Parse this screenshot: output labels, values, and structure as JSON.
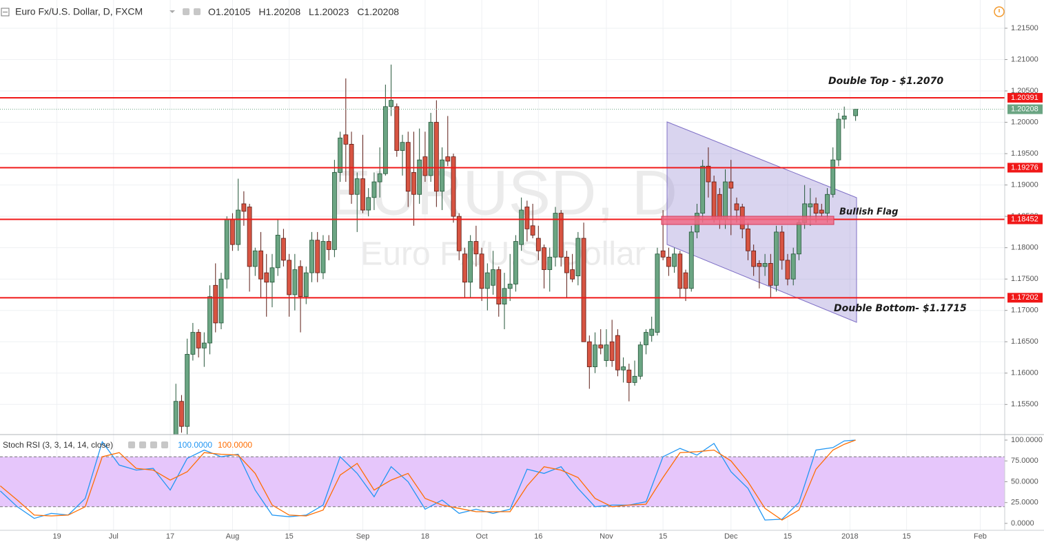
{
  "chart_data": [
    {
      "type": "candlestick",
      "title": "Euro Fx/U.S. Dollar, D, FXCM",
      "watermark": [
        "EURUSD, D",
        "Euro Fx/U.S. Dollar"
      ],
      "ohlc_labels": [
        "O",
        "H",
        "L",
        "C"
      ],
      "annotations": [
        "Double Top - $1.2070",
        "Bullish  Flag",
        "Double Bottom- $1.1715"
      ],
      "up_color": "#6ba583",
      "down_color": "#d75442",
      "level_color": "#f01818",
      "last_color": "#6ba583",
      "grid": true,
      "ylim": [
        1.1502,
        1.2195
      ],
      "yticks": [
        {
          "value": 1.155,
          "label": "1.15500"
        },
        {
          "value": 1.16,
          "label": "1.16000"
        },
        {
          "value": 1.165,
          "label": "1.16500"
        },
        {
          "value": 1.17,
          "label": "1.17000"
        },
        {
          "value": 1.175,
          "label": "1.17500"
        },
        {
          "value": 1.18,
          "label": "1.18000"
        },
        {
          "value": 1.185,
          "label": "1.18500"
        },
        {
          "value": 1.19,
          "label": "1.19000"
        },
        {
          "value": 1.195,
          "label": "1.19500"
        },
        {
          "value": 1.2,
          "label": "1.20000"
        },
        {
          "value": 1.205,
          "label": "1.20500"
        },
        {
          "value": 1.21,
          "label": "1.21000"
        },
        {
          "value": 1.215,
          "label": "1.21500"
        }
      ],
      "xticks": [
        {
          "value": "2017-06-19",
          "label": "19"
        },
        {
          "value": "2017-07-03",
          "label": "Jul"
        },
        {
          "value": "2017-07-17",
          "label": "17"
        },
        {
          "value": "2017-08-01",
          "label": "Aug"
        },
        {
          "value": "2017-08-15",
          "label": "15"
        },
        {
          "value": "2017-09-01",
          "label": "Sep"
        },
        {
          "value": "2017-09-18",
          "label": "18"
        },
        {
          "value": "2017-10-02",
          "label": "Oct"
        },
        {
          "value": "2017-10-16",
          "label": "16"
        },
        {
          "value": "2017-11-01",
          "label": "Nov"
        },
        {
          "value": "2017-11-15",
          "label": "15"
        },
        {
          "value": "2017-12-01",
          "label": "Dec"
        },
        {
          "value": "2017-12-15",
          "label": "15"
        },
        {
          "value": "2018-01-01",
          "label": "2018"
        },
        {
          "value": "2018-01-15",
          "label": "15"
        },
        {
          "value": "2018-02-01",
          "label": "Feb"
        }
      ],
      "levels": [
        1.20391,
        1.19276,
        1.18452,
        1.17202
      ],
      "dates": [
        "2017-07-17",
        "2017-07-18",
        "2017-07-19",
        "2017-07-20",
        "2017-07-21",
        "2017-07-24",
        "2017-07-25",
        "2017-07-26",
        "2017-07-27",
        "2017-07-28",
        "2017-07-31",
        "2017-08-01",
        "2017-08-02",
        "2017-08-03",
        "2017-08-04",
        "2017-08-07",
        "2017-08-08",
        "2017-08-09",
        "2017-08-10",
        "2017-08-11",
        "2017-08-14",
        "2017-08-15",
        "2017-08-16",
        "2017-08-17",
        "2017-08-18",
        "2017-08-21",
        "2017-08-22",
        "2017-08-23",
        "2017-08-24",
        "2017-08-25",
        "2017-08-28",
        "2017-08-29",
        "2017-08-30",
        "2017-08-31",
        "2017-09-01",
        "2017-09-04",
        "2017-09-05",
        "2017-09-06",
        "2017-09-07",
        "2017-09-08",
        "2017-09-11",
        "2017-09-12",
        "2017-09-13",
        "2017-09-14",
        "2017-09-15",
        "2017-09-18",
        "2017-09-19",
        "2017-09-20",
        "2017-09-21",
        "2017-09-22",
        "2017-09-25",
        "2017-09-26",
        "2017-09-27",
        "2017-09-28",
        "2017-09-29",
        "2017-10-02",
        "2017-10-03",
        "2017-10-04",
        "2017-10-05",
        "2017-10-06",
        "2017-10-09",
        "2017-10-10",
        "2017-10-11",
        "2017-10-12",
        "2017-10-13",
        "2017-10-16",
        "2017-10-17",
        "2017-10-18",
        "2017-10-19",
        "2017-10-20",
        "2017-10-23",
        "2017-10-24",
        "2017-10-25",
        "2017-10-26",
        "2017-10-27",
        "2017-10-30",
        "2017-10-31",
        "2017-11-01",
        "2017-11-02",
        "2017-11-03",
        "2017-11-06",
        "2017-11-07",
        "2017-11-08",
        "2017-11-09",
        "2017-11-10",
        "2017-11-13",
        "2017-11-14",
        "2017-11-15",
        "2017-11-16",
        "2017-11-17",
        "2017-11-20",
        "2017-11-21",
        "2017-11-22",
        "2017-11-23",
        "2017-11-24",
        "2017-11-27",
        "2017-11-28",
        "2017-11-29",
        "2017-11-30",
        "2017-12-01",
        "2017-12-04",
        "2017-12-05",
        "2017-12-06",
        "2017-12-07",
        "2017-12-08",
        "2017-12-11",
        "2017-12-12",
        "2017-12-13",
        "2017-12-14",
        "2017-12-15",
        "2017-12-18",
        "2017-12-19",
        "2017-12-20",
        "2017-12-21",
        "2017-12-22",
        "2017-12-25",
        "2017-12-26",
        "2017-12-27",
        "2017-12-28",
        "2017-12-29",
        "2018-01-02"
      ],
      "open": [
        1.147,
        1.1475,
        1.1555,
        1.1515,
        1.163,
        1.1665,
        1.164,
        1.1648,
        1.174,
        1.168,
        1.175,
        1.1845,
        1.1805,
        1.187,
        1.1865,
        1.177,
        1.1795,
        1.176,
        1.1745,
        1.1768,
        1.1815,
        1.178,
        1.1725,
        1.177,
        1.1722,
        1.176,
        1.1812,
        1.176,
        1.181,
        1.1797,
        1.192,
        1.198,
        1.1965,
        1.1885,
        1.191,
        1.186,
        1.188,
        1.1905,
        1.1918,
        1.2025,
        1.2025,
        1.1955,
        1.1968,
        1.192,
        1.1885,
        1.1945,
        1.1915,
        1.2,
        1.189,
        1.1945,
        1.1945,
        1.185,
        1.179,
        1.1745,
        1.181,
        1.179,
        1.1735,
        1.174,
        1.1765,
        1.171,
        1.1735,
        1.1742,
        1.1805,
        1.1865,
        1.1835,
        1.1815,
        1.18,
        1.1765,
        1.1785,
        1.1855,
        1.1785,
        1.1765,
        1.1755,
        1.1815,
        1.165,
        1.161,
        1.1645,
        1.162,
        1.165,
        1.166,
        1.1605,
        1.1605,
        1.1585,
        1.1595,
        1.1645,
        1.166,
        1.1665,
        1.1795,
        1.1785,
        1.177,
        1.179,
        1.176,
        1.1735,
        1.1825,
        1.1855,
        1.193,
        1.1905,
        1.1885,
        1.1845,
        1.1905,
        1.187,
        1.1865,
        1.183,
        1.1795,
        1.1775,
        1.177,
        1.1775,
        1.174,
        1.1825,
        1.178,
        1.175,
        1.179,
        1.184,
        1.1865,
        1.187,
        1.186,
        1.1855,
        1.1885,
        1.194,
        1.2005,
        1.20105
      ],
      "high": [
        1.149,
        1.1583,
        1.1565,
        1.1655,
        1.168,
        1.167,
        1.1665,
        1.174,
        1.1775,
        1.176,
        1.185,
        1.1855,
        1.191,
        1.189,
        1.187,
        1.18,
        1.1825,
        1.179,
        1.179,
        1.1845,
        1.183,
        1.179,
        1.179,
        1.178,
        1.177,
        1.1825,
        1.1825,
        1.182,
        1.182,
        1.194,
        1.1985,
        1.207,
        1.1985,
        1.192,
        1.198,
        1.1895,
        1.192,
        1.196,
        1.206,
        1.2092,
        1.203,
        1.198,
        1.1985,
        1.1985,
        1.199,
        1.1985,
        1.2015,
        1.2035,
        1.196,
        1.201,
        1.195,
        1.1855,
        1.18,
        1.182,
        1.1835,
        1.18,
        1.1775,
        1.1795,
        1.177,
        1.176,
        1.179,
        1.182,
        1.188,
        1.1875,
        1.187,
        1.1835,
        1.1805,
        1.18,
        1.1865,
        1.186,
        1.1795,
        1.179,
        1.1825,
        1.184,
        1.166,
        1.1665,
        1.167,
        1.167,
        1.1685,
        1.167,
        1.1625,
        1.1615,
        1.162,
        1.165,
        1.167,
        1.169,
        1.18,
        1.186,
        1.18,
        1.18,
        1.1795,
        1.1765,
        1.1835,
        1.187,
        1.194,
        1.196,
        1.1915,
        1.1895,
        1.1925,
        1.194,
        1.188,
        1.187,
        1.184,
        1.1805,
        1.178,
        1.179,
        1.179,
        1.1835,
        1.1835,
        1.179,
        1.18,
        1.1845,
        1.19,
        1.1895,
        1.188,
        1.187,
        1.1895,
        1.196,
        1.2015,
        1.2025,
        1.20208
      ],
      "low": [
        1.145,
        1.147,
        1.1505,
        1.15,
        1.162,
        1.1625,
        1.161,
        1.163,
        1.1665,
        1.167,
        1.1735,
        1.1795,
        1.1795,
        1.1835,
        1.173,
        1.1755,
        1.172,
        1.169,
        1.1705,
        1.1755,
        1.177,
        1.169,
        1.17,
        1.1665,
        1.171,
        1.1745,
        1.1745,
        1.175,
        1.178,
        1.1785,
        1.1905,
        1.1905,
        1.187,
        1.1825,
        1.1855,
        1.185,
        1.186,
        1.188,
        1.1915,
        1.201,
        1.1945,
        1.1915,
        1.1865,
        1.1835,
        1.187,
        1.1905,
        1.1905,
        1.1865,
        1.186,
        1.193,
        1.184,
        1.178,
        1.172,
        1.172,
        1.177,
        1.1715,
        1.17,
        1.1725,
        1.169,
        1.167,
        1.1715,
        1.173,
        1.1795,
        1.181,
        1.1815,
        1.178,
        1.1735,
        1.173,
        1.177,
        1.177,
        1.172,
        1.1745,
        1.174,
        1.165,
        1.1575,
        1.16,
        1.163,
        1.161,
        1.161,
        1.1595,
        1.1585,
        1.1555,
        1.158,
        1.159,
        1.163,
        1.165,
        1.166,
        1.178,
        1.1755,
        1.176,
        1.172,
        1.1715,
        1.173,
        1.1815,
        1.184,
        1.188,
        1.184,
        1.183,
        1.183,
        1.182,
        1.184,
        1.1815,
        1.178,
        1.1755,
        1.1735,
        1.1755,
        1.172,
        1.173,
        1.1765,
        1.174,
        1.174,
        1.178,
        1.183,
        1.1835,
        1.184,
        1.185,
        1.184,
        1.188,
        1.193,
        1.199,
        1.20023
      ],
      "close": [
        1.1475,
        1.1555,
        1.1515,
        1.163,
        1.1665,
        1.164,
        1.1648,
        1.1722,
        1.168,
        1.175,
        1.1845,
        1.1805,
        1.186,
        1.1858,
        1.177,
        1.1795,
        1.175,
        1.1745,
        1.1768,
        1.182,
        1.178,
        1.1725,
        1.1765,
        1.1722,
        1.176,
        1.1812,
        1.176,
        1.181,
        1.1797,
        1.192,
        1.1975,
        1.1965,
        1.1885,
        1.191,
        1.186,
        1.188,
        1.1905,
        1.1918,
        1.2025,
        1.2035,
        1.1955,
        1.1968,
        1.189,
        1.1885,
        1.194,
        1.1915,
        1.2,
        1.189,
        1.194,
        1.1938,
        1.185,
        1.1795,
        1.1745,
        1.181,
        1.179,
        1.1735,
        1.176,
        1.1765,
        1.171,
        1.1735,
        1.1742,
        1.181,
        1.186,
        1.183,
        1.182,
        1.1795,
        1.1765,
        1.1785,
        1.1855,
        1.1785,
        1.176,
        1.175,
        1.1815,
        1.165,
        1.161,
        1.1645,
        1.164,
        1.1645,
        1.162,
        1.1605,
        1.161,
        1.1585,
        1.1595,
        1.1645,
        1.1665,
        1.167,
        1.179,
        1.1785,
        1.177,
        1.179,
        1.1735,
        1.1735,
        1.1825,
        1.1855,
        1.193,
        1.1905,
        1.1845,
        1.1845,
        1.1905,
        1.1895,
        1.186,
        1.183,
        1.1795,
        1.177,
        1.177,
        1.1775,
        1.174,
        1.1825,
        1.178,
        1.175,
        1.179,
        1.184,
        1.187,
        1.187,
        1.1855,
        1.1855,
        1.1885,
        1.194,
        1.2005,
        1.201,
        1.20208
      ]
    },
    {
      "type": "line",
      "title": "Stoch RSI (3, 3, 14, 14, close)",
      "ylim": [
        -8.3,
        105.8
      ],
      "yticks": [
        {
          "value": 0,
          "label": "0.0000"
        },
        {
          "value": 25,
          "label": "25.0000"
        },
        {
          "value": 50,
          "label": "50.0000"
        },
        {
          "value": 75,
          "label": "75.0000"
        },
        {
          "value": 100,
          "label": "100.0000"
        }
      ],
      "bands": [
        20,
        80
      ],
      "band_color": "#e6c6fb",
      "x": [
        "2017-06-05",
        "2017-06-08",
        "2017-06-13",
        "2017-06-16",
        "2017-06-21",
        "2017-06-26",
        "2017-06-29",
        "2017-07-04",
        "2017-07-07",
        "2017-07-12",
        "2017-07-17",
        "2017-07-20",
        "2017-07-25",
        "2017-07-28",
        "2017-08-02",
        "2017-08-07",
        "2017-08-10",
        "2017-08-15",
        "2017-08-18",
        "2017-08-23",
        "2017-08-28",
        "2017-08-31",
        "2017-09-05",
        "2017-09-08",
        "2017-09-13",
        "2017-09-18",
        "2017-09-21",
        "2017-09-26",
        "2017-09-29",
        "2017-10-04",
        "2017-10-09",
        "2017-10-12",
        "2017-10-17",
        "2017-10-20",
        "2017-10-25",
        "2017-10-30",
        "2017-11-02",
        "2017-11-07",
        "2017-11-10",
        "2017-11-15",
        "2017-11-20",
        "2017-11-23",
        "2017-11-28",
        "2017-12-01",
        "2017-12-06",
        "2017-12-11",
        "2017-12-14",
        "2017-12-19",
        "2017-12-22",
        "2017-12-27",
        "2017-12-29",
        "2018-01-02"
      ],
      "series": [
        {
          "color": "#2196f3",
          "last_label": "100.0000",
          "values": [
            39,
            20,
            6,
            12,
            10,
            30,
            98,
            70,
            64,
            66,
            40,
            78,
            88,
            80,
            83,
            40,
            10,
            8,
            10,
            22,
            80,
            60,
            32,
            68,
            50,
            17,
            28,
            12,
            17,
            12,
            17,
            65,
            60,
            68,
            42,
            20,
            22,
            22,
            26,
            80,
            90,
            82,
            96,
            62,
            42,
            4,
            5,
            25,
            88,
            91,
            99,
            100
          ]
        },
        {
          "color": "#ff6d00",
          "last_label": "100.0000",
          "values": [
            45,
            28,
            10,
            9,
            10,
            20,
            80,
            85,
            66,
            64,
            52,
            62,
            85,
            83,
            82,
            60,
            22,
            10,
            9,
            16,
            58,
            72,
            40,
            52,
            60,
            30,
            22,
            18,
            14,
            14,
            14,
            45,
            68,
            64,
            55,
            30,
            20,
            22,
            23,
            55,
            85,
            86,
            88,
            75,
            50,
            18,
            4,
            16,
            65,
            88,
            95,
            100
          ]
        }
      ]
    }
  ]
}
